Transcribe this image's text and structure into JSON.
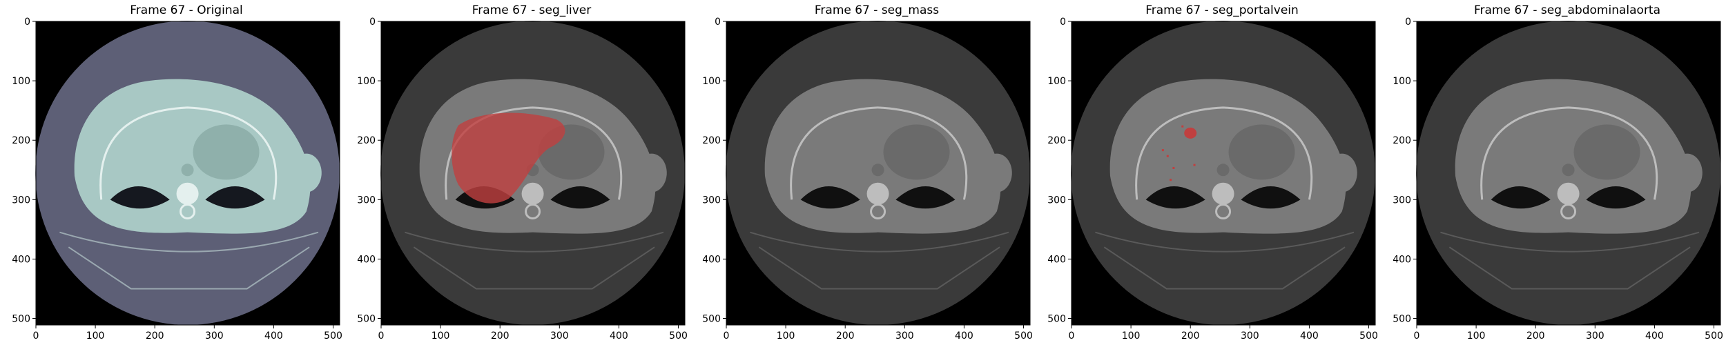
{
  "panels": [
    {
      "title": "Frame 67 - Original",
      "colormap": "bone",
      "overlay": "none"
    },
    {
      "title": "Frame 67 - seg_liver",
      "colormap": "gray",
      "overlay": "liver"
    },
    {
      "title": "Frame 67 - seg_mass",
      "colormap": "gray",
      "overlay": "none"
    },
    {
      "title": "Frame 67 - seg_portalvein",
      "colormap": "gray",
      "overlay": "portalvein"
    },
    {
      "title": "Frame 67 - seg_abdominalaorta",
      "colormap": "gray",
      "overlay": "none"
    }
  ],
  "axes": {
    "x_ticks": [
      "0",
      "100",
      "200",
      "300",
      "400",
      "500"
    ],
    "y_ticks": [
      "0",
      "100",
      "200",
      "300",
      "400",
      "500"
    ],
    "x_range": [
      0,
      511
    ],
    "y_range": [
      0,
      511
    ]
  },
  "colors": {
    "overlay": "#c04040",
    "bone_skin": "#5d5f76",
    "bone_soft": "#a8c8c4",
    "gray_skin": "#3a3a3a",
    "gray_soft": "#7a7a7a"
  }
}
